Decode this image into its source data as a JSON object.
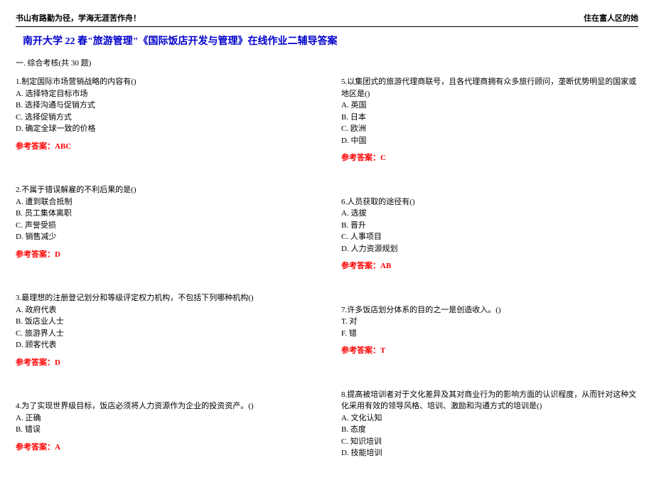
{
  "header": {
    "left": "书山有路勤为径，学海无涯苦作舟！",
    "right": "住在富人区的她"
  },
  "title": "南开大学 22 春\"旅游管理\"《国际饭店开发与管理》在线作业二辅导答案",
  "section": "一. 综合考核(共 30 题)",
  "questions_left": [
    {
      "num": "1.",
      "stem": "制定国际市场营销战略的内容有()",
      "options": [
        "A. 选择特定目标市场",
        "B. 选择沟通与促销方式",
        "C. 选择促销方式",
        "D. 确定全球一致的价格"
      ],
      "answer": "参考答案：ABC"
    },
    {
      "num": "2.",
      "stem": "不属于错误解雇的不利后果的是()",
      "options": [
        "A. 遭到联合抵制",
        "B. 员工集体离职",
        "C. 声誉受损",
        "D. 销售减少"
      ],
      "answer": "参考答案：D"
    },
    {
      "num": "3.",
      "stem": "最理想的注册登记划分和等级评定权力机构，不包括下列哪种机构()",
      "options": [
        "A. 政府代表",
        "B. 饭店业人士",
        "C. 旅游界人士",
        "D. 顾客代表"
      ],
      "answer": "参考答案：D"
    },
    {
      "num": "4.",
      "stem": "为了实现世界级目标，饭店必须将人力资源作为企业的投资资产。()",
      "options": [
        "A. 正确",
        "B. 错误"
      ],
      "answer": "参考答案：A"
    }
  ],
  "questions_right": [
    {
      "num": "5.",
      "stem": "以集团式的旅游代理商联号，且各代理商拥有众多旅行顾问，垄断优势明显的国家或地区是()",
      "options": [
        "A. 英国",
        "B. 日本",
        "C. 欧洲",
        "D. 中国"
      ],
      "answer": "参考答案：C"
    },
    {
      "num": "6.",
      "stem": "人员获取的途径有()",
      "options": [
        "A. 选拔",
        "B. 晋升",
        "C. 人事项目",
        "D. 人力资源规划"
      ],
      "answer": "参考答案：AB"
    },
    {
      "num": "7.",
      "stem": "许多饭店划分体系的目的之一是创造收入。()",
      "options": [
        "T. 对",
        "F. 错"
      ],
      "answer": "参考答案：T"
    },
    {
      "num": "8.",
      "stem": "提高被培训者对于文化差异及其对商业行为的影响方面的认识程度，从而针对这种文化采用有效的领导风格、培训、激励和沟通方式的培训是()",
      "options": [
        "A. 文化认知",
        "B. 态度",
        "C. 知识培训",
        "D. 技能培训"
      ],
      "answer": ""
    }
  ]
}
